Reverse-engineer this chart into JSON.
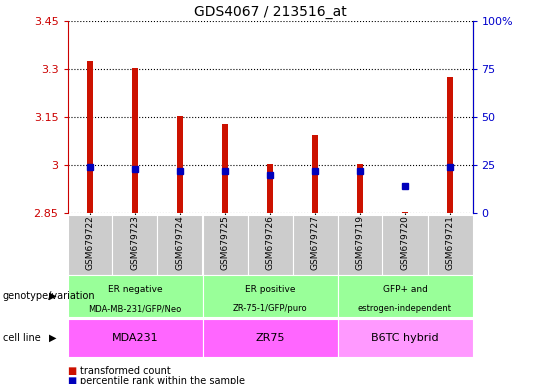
{
  "title": "GDS4067 / 213516_at",
  "samples": [
    "GSM679722",
    "GSM679723",
    "GSM679724",
    "GSM679725",
    "GSM679726",
    "GSM679727",
    "GSM679719",
    "GSM679720",
    "GSM679721"
  ],
  "transformed_count": [
    3.325,
    3.305,
    3.155,
    3.13,
    3.005,
    3.095,
    3.005,
    2.855,
    3.275
  ],
  "percentile_rank": [
    24,
    23,
    22,
    22,
    20,
    22,
    22,
    14,
    24
  ],
  "bar_bottom": 2.85,
  "ylim_left": [
    2.85,
    3.45
  ],
  "ylim_right": [
    0,
    100
  ],
  "yticks_left": [
    2.85,
    3.0,
    3.15,
    3.3,
    3.45
  ],
  "yticks_right": [
    0,
    25,
    50,
    75,
    100
  ],
  "ytick_labels_left": [
    "2.85",
    "3",
    "3.15",
    "3.3",
    "3.45"
  ],
  "ytick_labels_right": [
    "0",
    "25",
    "50",
    "75",
    "100%"
  ],
  "bar_color": "#cc1100",
  "dot_color": "#0000bb",
  "bar_width": 0.12,
  "groups": [
    {
      "label": "ER negative\nMDA-MB-231/GFP/Neo",
      "cell_line": "MDA231",
      "start": 0,
      "end": 3,
      "geno_color": "#99ff99",
      "cell_color": "#ff66ff"
    },
    {
      "label": "ER positive\nZR-75-1/GFP/puro",
      "cell_line": "ZR75",
      "start": 3,
      "end": 6,
      "geno_color": "#99ff99",
      "cell_color": "#ff66ff"
    },
    {
      "label": "GFP+ and\nestrogen-independent",
      "cell_line": "B6TC hybrid",
      "start": 6,
      "end": 9,
      "geno_color": "#99ff99",
      "cell_color": "#ff99ff"
    }
  ],
  "legend_items": [
    {
      "label": "transformed count",
      "color": "#cc1100"
    },
    {
      "label": "percentile rank within the sample",
      "color": "#0000bb"
    }
  ],
  "xlabel_left": "genotype/variation",
  "xlabel_cell": "cell line",
  "axis_color_left": "#cc0000",
  "axis_color_right": "#0000cc",
  "plot_bg": "#ffffff",
  "xtick_bg": "#cccccc"
}
